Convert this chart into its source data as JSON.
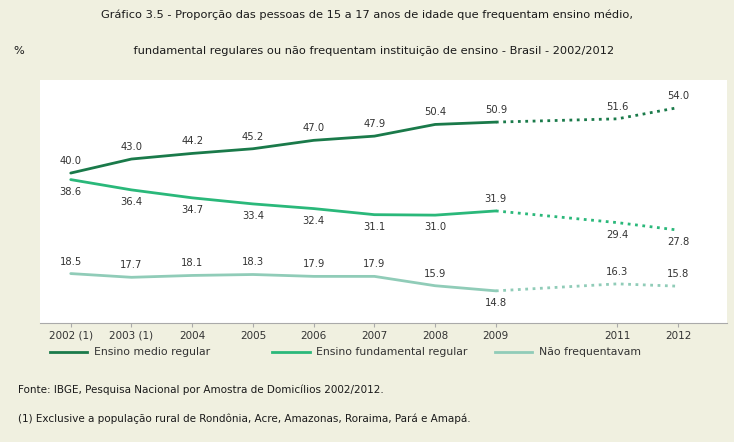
{
  "title_line1": "Gráfico 3.5 - Proporção das pessoas de 15 a 17 anos de idade que frequentam ensino médio,",
  "title_line2": "    fundamental regulares ou não frequentam instituição de ensino - Brasil - 2002/2012",
  "ylabel": "%",
  "years": [
    2002,
    2003,
    2004,
    2005,
    2006,
    2007,
    2008,
    2009,
    2011,
    2012
  ],
  "ensino_medio": [
    40.0,
    43.0,
    44.2,
    45.2,
    47.0,
    47.9,
    50.4,
    50.9,
    51.6,
    54.0
  ],
  "ensino_fundamental": [
    38.6,
    36.4,
    34.7,
    33.4,
    32.4,
    31.1,
    31.0,
    31.9,
    29.4,
    27.8
  ],
  "nao_frequentavam": [
    18.5,
    17.7,
    18.1,
    18.3,
    17.9,
    17.9,
    15.9,
    14.8,
    16.3,
    15.8
  ],
  "dashed_from_idx": 7,
  "color_medio": "#1a7a4a",
  "color_fundamental": "#2ab87a",
  "color_nao": "#90ccb8",
  "xlabel_labels": [
    "2002 (1)",
    "2003 (1)",
    "2004",
    "2005",
    "2006",
    "2007",
    "2008",
    "2009",
    "2011",
    "2012"
  ],
  "source_text": "Fonte: IBGE, Pesquisa Nacional por Amostra de Domicílios 2002/2012.",
  "note_text": "(1) Exclusive a população rural de Rondônia, Acre, Amazonas, Roraima, Pará e Amapá.",
  "legend_medio": "Ensino medio regular",
  "legend_fundamental": "Ensino fundamental regular",
  "legend_nao": "Não frequentavam",
  "bg_color": "#f0f0e0",
  "plot_bg_color": "#ffffff",
  "title_bg_color": "#eaeada"
}
